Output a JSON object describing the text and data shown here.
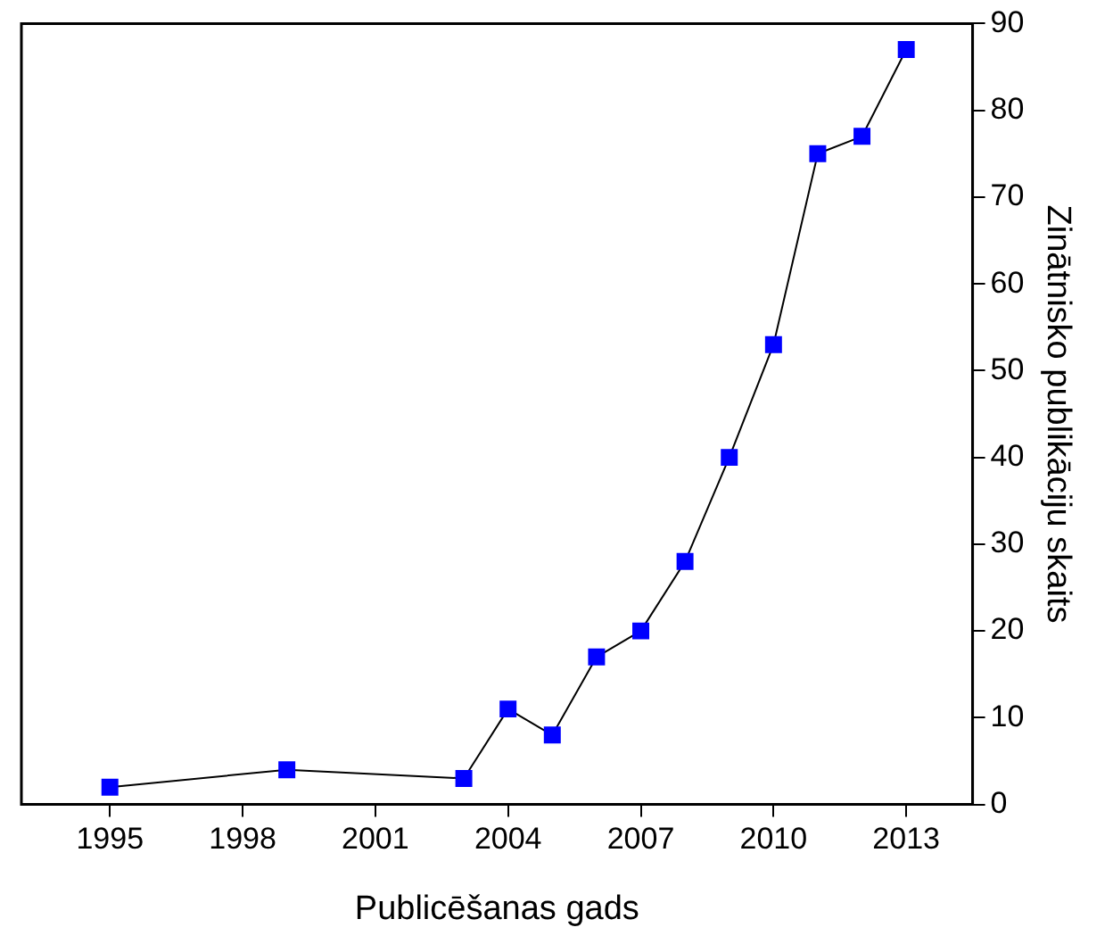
{
  "chart_data": {
    "type": "line",
    "xlabel": "Publicēšanas gads",
    "ylabel": "Zinātnisko publikāciju skaits",
    "x": [
      1995,
      1999,
      2003,
      2004,
      2005,
      2006,
      2007,
      2008,
      2009,
      2010,
      2011,
      2012,
      2013
    ],
    "series": [
      {
        "color": "#0000ff",
        "values": [
          2,
          4,
          3,
          11,
          8,
          17,
          20,
          28,
          40,
          53,
          75,
          77,
          87
        ]
      }
    ],
    "xlim": [
      1993,
      2014.5
    ],
    "xticks": [
      1995,
      1998,
      2001,
      2004,
      2007,
      2010,
      2013
    ],
    "ylim": [
      0,
      90
    ],
    "yticks": [
      0,
      10,
      20,
      30,
      40,
      50,
      60,
      70,
      80,
      90
    ],
    "grid": false,
    "legend": false,
    "marker": "square",
    "line_style": "solid"
  }
}
